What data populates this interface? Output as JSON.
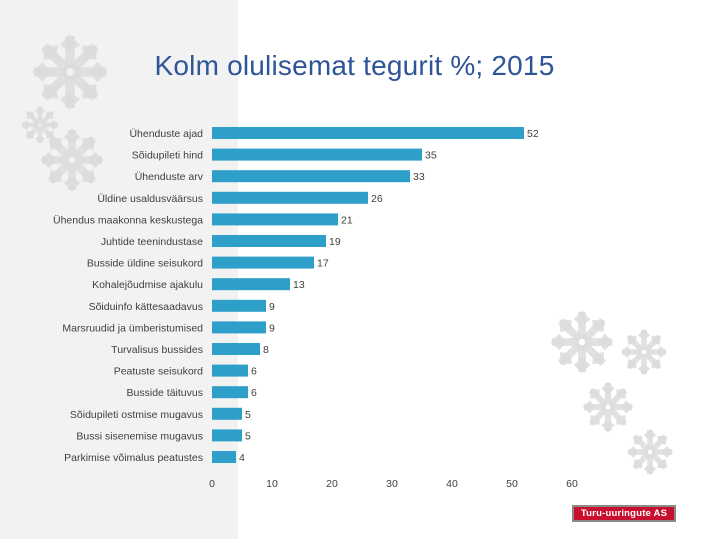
{
  "chart_data": {
    "type": "bar",
    "orientation": "horizontal",
    "title": "Kolm olulisemat tegurit %; 2015",
    "categories": [
      "Ühenduste ajad",
      "Sõidupileti hind",
      "Ühenduste arv",
      "Üldine usaldusväärsus",
      "Ühendus maakonna keskustega",
      "Juhtide teenindustase",
      "Busside üldine seisukord",
      "Kohalejõudmise ajakulu",
      "Sõiduinfo kättesaadavus",
      "Marsruudid ja ümberistumised",
      "Turvalisus bussides",
      "Peatuste seisukord",
      "Busside täituvus",
      "Sõidupileti ostmise mugavus",
      "Bussi sisenemise mugavus",
      "Parkimise võimalus peatustes"
    ],
    "values": [
      52,
      35,
      33,
      26,
      21,
      19,
      17,
      13,
      9,
      9,
      8,
      6,
      6,
      5,
      5,
      4
    ],
    "xlim": [
      0,
      60
    ],
    "xticks": [
      0,
      10,
      20,
      30,
      40,
      50,
      60
    ],
    "xlabel": "",
    "ylabel": "",
    "grid": false,
    "bar_color": "#2e9fc9"
  },
  "logo": {
    "text": "Turu-uuringute AS",
    "color": "#c8102e"
  },
  "decor": {
    "snowflake_color": "#dcdcdc"
  }
}
